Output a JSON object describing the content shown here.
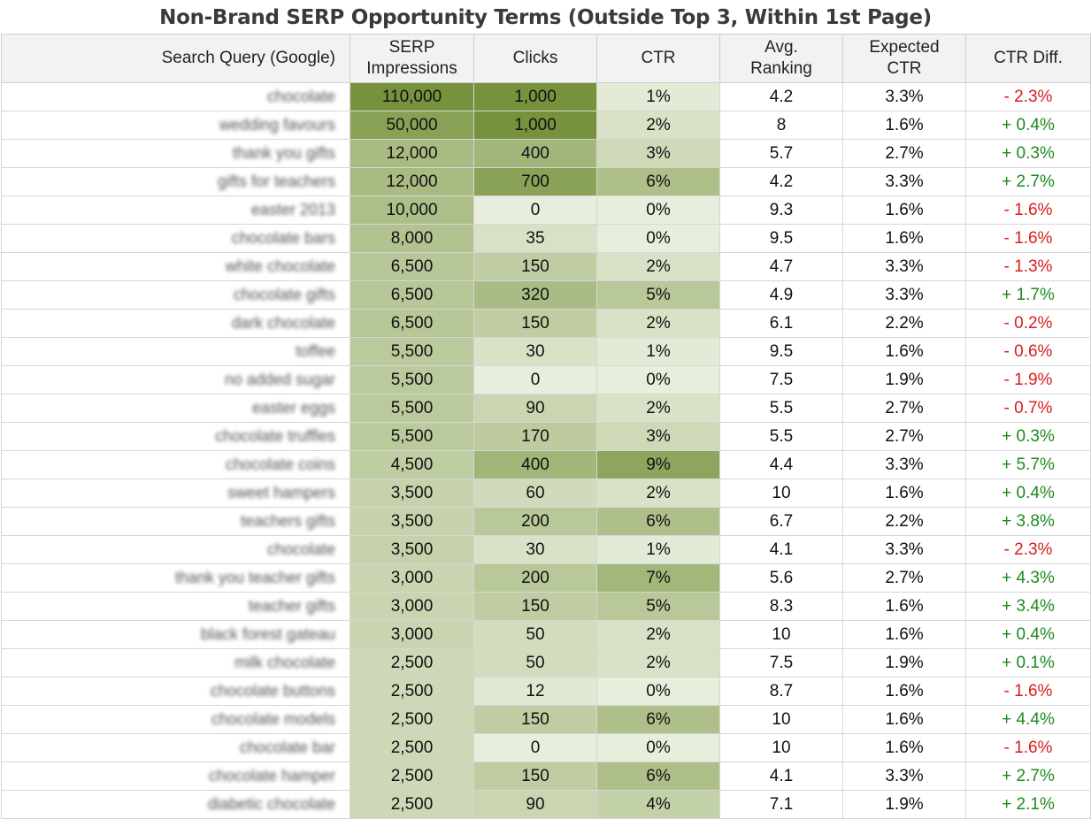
{
  "title": "Non-Brand SERP Opportunity Terms (Outside Top 3, Within 1st Page)",
  "colors": {
    "scale_low": "#eef3e4",
    "scale_high": "#76923c",
    "positive": "#1f8a1f",
    "negative": "#d81c1c",
    "header_bg": "#f2f2f2"
  },
  "header": {
    "query": "Search Query (Google)",
    "impressions_line1": "SERP",
    "impressions_line2": "Impressions",
    "clicks": "Clicks",
    "ctr": "CTR",
    "ranking_line1": "Avg.",
    "ranking_line2": "Ranking",
    "expected_line1": "Expected",
    "expected_line2": "CTR",
    "diff": "CTR Diff."
  },
  "chart_data": {
    "type": "table",
    "title": "Non-Brand SERP Opportunity Terms (Outside Top 3, Within 1st Page)",
    "columns": [
      "Search Query (Google)",
      "SERP Impressions",
      "Clicks",
      "CTR",
      "Avg. Ranking",
      "Expected CTR",
      "CTR Diff."
    ],
    "heat_scale_max": {
      "impressions": 110000,
      "clicks": 1000,
      "ctr": 9
    },
    "rows": [
      {
        "query": "chocolate",
        "impressions": 110000,
        "impressions_label": "110,000",
        "clicks": 1000,
        "clicks_label": "1,000",
        "ctr": 1,
        "ctr_label": "1%",
        "ranking": "4.2",
        "expected": "3.3%",
        "diff": "- 2.3%",
        "diff_sign": "neg"
      },
      {
        "query": "wedding favours",
        "impressions": 50000,
        "impressions_label": "50,000",
        "clicks": 1000,
        "clicks_label": "1,000",
        "ctr": 2,
        "ctr_label": "2%",
        "ranking": "8",
        "expected": "1.6%",
        "diff": "+ 0.4%",
        "diff_sign": "pos"
      },
      {
        "query": "thank you gifts",
        "impressions": 12000,
        "impressions_label": "12,000",
        "clicks": 400,
        "clicks_label": "400",
        "ctr": 3,
        "ctr_label": "3%",
        "ranking": "5.7",
        "expected": "2.7%",
        "diff": "+ 0.3%",
        "diff_sign": "pos"
      },
      {
        "query": "gifts for teachers",
        "impressions": 12000,
        "impressions_label": "12,000",
        "clicks": 700,
        "clicks_label": "700",
        "ctr": 6,
        "ctr_label": "6%",
        "ranking": "4.2",
        "expected": "3.3%",
        "diff": "+ 2.7%",
        "diff_sign": "pos"
      },
      {
        "query": "easter 2013",
        "impressions": 10000,
        "impressions_label": "10,000",
        "clicks": 0,
        "clicks_label": "0",
        "ctr": 0,
        "ctr_label": "0%",
        "ranking": "9.3",
        "expected": "1.6%",
        "diff": "- 1.6%",
        "diff_sign": "neg"
      },
      {
        "query": "chocolate bars",
        "impressions": 8000,
        "impressions_label": "8,000",
        "clicks": 35,
        "clicks_label": "35",
        "ctr": 0,
        "ctr_label": "0%",
        "ranking": "9.5",
        "expected": "1.6%",
        "diff": "- 1.6%",
        "diff_sign": "neg"
      },
      {
        "query": "white chocolate",
        "impressions": 6500,
        "impressions_label": "6,500",
        "clicks": 150,
        "clicks_label": "150",
        "ctr": 2,
        "ctr_label": "2%",
        "ranking": "4.7",
        "expected": "3.3%",
        "diff": "- 1.3%",
        "diff_sign": "neg"
      },
      {
        "query": "chocolate gifts",
        "impressions": 6500,
        "impressions_label": "6,500",
        "clicks": 320,
        "clicks_label": "320",
        "ctr": 5,
        "ctr_label": "5%",
        "ranking": "4.9",
        "expected": "3.3%",
        "diff": "+ 1.7%",
        "diff_sign": "pos"
      },
      {
        "query": "dark chocolate",
        "impressions": 6500,
        "impressions_label": "6,500",
        "clicks": 150,
        "clicks_label": "150",
        "ctr": 2,
        "ctr_label": "2%",
        "ranking": "6.1",
        "expected": "2.2%",
        "diff": "- 0.2%",
        "diff_sign": "neg"
      },
      {
        "query": "toffee",
        "impressions": 5500,
        "impressions_label": "5,500",
        "clicks": 30,
        "clicks_label": "30",
        "ctr": 1,
        "ctr_label": "1%",
        "ranking": "9.5",
        "expected": "1.6%",
        "diff": "- 0.6%",
        "diff_sign": "neg"
      },
      {
        "query": "no added sugar",
        "impressions": 5500,
        "impressions_label": "5,500",
        "clicks": 0,
        "clicks_label": "0",
        "ctr": 0,
        "ctr_label": "0%",
        "ranking": "7.5",
        "expected": "1.9%",
        "diff": "- 1.9%",
        "diff_sign": "neg"
      },
      {
        "query": "easter eggs",
        "impressions": 5500,
        "impressions_label": "5,500",
        "clicks": 90,
        "clicks_label": "90",
        "ctr": 2,
        "ctr_label": "2%",
        "ranking": "5.5",
        "expected": "2.7%",
        "diff": "- 0.7%",
        "diff_sign": "neg"
      },
      {
        "query": "chocolate truffles",
        "impressions": 5500,
        "impressions_label": "5,500",
        "clicks": 170,
        "clicks_label": "170",
        "ctr": 3,
        "ctr_label": "3%",
        "ranking": "5.5",
        "expected": "2.7%",
        "diff": "+ 0.3%",
        "diff_sign": "pos"
      },
      {
        "query": "chocolate coins",
        "impressions": 4500,
        "impressions_label": "4,500",
        "clicks": 400,
        "clicks_label": "400",
        "ctr": 9,
        "ctr_label": "9%",
        "ranking": "4.4",
        "expected": "3.3%",
        "diff": "+ 5.7%",
        "diff_sign": "pos"
      },
      {
        "query": "sweet hampers",
        "impressions": 3500,
        "impressions_label": "3,500",
        "clicks": 60,
        "clicks_label": "60",
        "ctr": 2,
        "ctr_label": "2%",
        "ranking": "10",
        "expected": "1.6%",
        "diff": "+ 0.4%",
        "diff_sign": "pos"
      },
      {
        "query": "teachers gifts",
        "impressions": 3500,
        "impressions_label": "3,500",
        "clicks": 200,
        "clicks_label": "200",
        "ctr": 6,
        "ctr_label": "6%",
        "ranking": "6.7",
        "expected": "2.2%",
        "diff": "+ 3.8%",
        "diff_sign": "pos"
      },
      {
        "query": "chocolate",
        "impressions": 3500,
        "impressions_label": "3,500",
        "clicks": 30,
        "clicks_label": "30",
        "ctr": 1,
        "ctr_label": "1%",
        "ranking": "4.1",
        "expected": "3.3%",
        "diff": "- 2.3%",
        "diff_sign": "neg"
      },
      {
        "query": "thank you teacher gifts",
        "impressions": 3000,
        "impressions_label": "3,000",
        "clicks": 200,
        "clicks_label": "200",
        "ctr": 7,
        "ctr_label": "7%",
        "ranking": "5.6",
        "expected": "2.7%",
        "diff": "+ 4.3%",
        "diff_sign": "pos"
      },
      {
        "query": "teacher gifts",
        "impressions": 3000,
        "impressions_label": "3,000",
        "clicks": 150,
        "clicks_label": "150",
        "ctr": 5,
        "ctr_label": "5%",
        "ranking": "8.3",
        "expected": "1.6%",
        "diff": "+ 3.4%",
        "diff_sign": "pos"
      },
      {
        "query": "black forest gateau",
        "impressions": 3000,
        "impressions_label": "3,000",
        "clicks": 50,
        "clicks_label": "50",
        "ctr": 2,
        "ctr_label": "2%",
        "ranking": "10",
        "expected": "1.6%",
        "diff": "+ 0.4%",
        "diff_sign": "pos"
      },
      {
        "query": "milk chocolate",
        "impressions": 2500,
        "impressions_label": "2,500",
        "clicks": 50,
        "clicks_label": "50",
        "ctr": 2,
        "ctr_label": "2%",
        "ranking": "7.5",
        "expected": "1.9%",
        "diff": "+ 0.1%",
        "diff_sign": "pos"
      },
      {
        "query": "chocolate buttons",
        "impressions": 2500,
        "impressions_label": "2,500",
        "clicks": 12,
        "clicks_label": "12",
        "ctr": 0,
        "ctr_label": "0%",
        "ranking": "8.7",
        "expected": "1.6%",
        "diff": "- 1.6%",
        "diff_sign": "neg"
      },
      {
        "query": "chocolate models",
        "impressions": 2500,
        "impressions_label": "2,500",
        "clicks": 150,
        "clicks_label": "150",
        "ctr": 6,
        "ctr_label": "6%",
        "ranking": "10",
        "expected": "1.6%",
        "diff": "+ 4.4%",
        "diff_sign": "pos"
      },
      {
        "query": "chocolate bar",
        "impressions": 2500,
        "impressions_label": "2,500",
        "clicks": 0,
        "clicks_label": "0",
        "ctr": 0,
        "ctr_label": "0%",
        "ranking": "10",
        "expected": "1.6%",
        "diff": "- 1.6%",
        "diff_sign": "neg"
      },
      {
        "query": "chocolate hamper",
        "impressions": 2500,
        "impressions_label": "2,500",
        "clicks": 150,
        "clicks_label": "150",
        "ctr": 6,
        "ctr_label": "6%",
        "ranking": "4.1",
        "expected": "3.3%",
        "diff": "+ 2.7%",
        "diff_sign": "pos"
      },
      {
        "query": "diabetic chocolate",
        "impressions": 2500,
        "impressions_label": "2,500",
        "clicks": 90,
        "clicks_label": "90",
        "ctr": 4,
        "ctr_label": "4%",
        "ranking": "7.1",
        "expected": "1.9%",
        "diff": "+ 2.1%",
        "diff_sign": "pos"
      }
    ]
  }
}
